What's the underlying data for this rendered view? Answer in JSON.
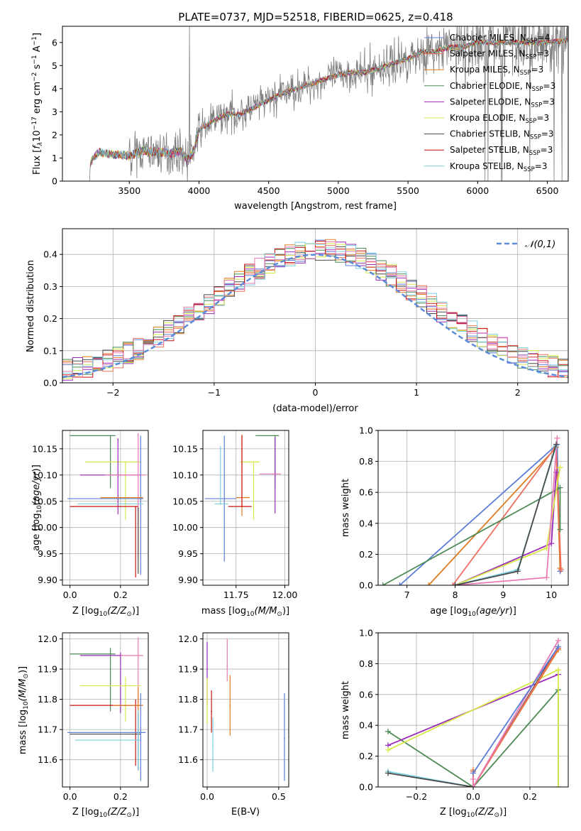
{
  "figure_title": "PLATE=0737, MJD=52518, FIBERID=0625, z=0.418",
  "palette": {
    "Chabrier MILES": "#5b7fd6",
    "Salpeter MILES": "#ee7060",
    "Kroupa MILES": "#e07b20",
    "Chabrier ELODIE": "#4d8a55",
    "Salpeter ELODIE": "#9b2ab8",
    "Kroupa ELODIE": "#d8e84a",
    "Chabrier STELIB": "#4a4a4a",
    "Salpeter STELIB": "#c81414",
    "Kroupa STELIB": "#7ad0e0",
    "pink": "#e87ab4",
    "data": "#7f7f7f",
    "normal": "#5b8bd9"
  },
  "chart_data": [
    {
      "id": "spectrum",
      "type": "line",
      "xlabel": "wavelength [Angstrom, rest frame]",
      "ylabel_parts": [
        "Flux [",
        "f",
        "λ",
        "10",
        "−17",
        " erg cm",
        "−2",
        " s",
        "−1",
        " A",
        "−1",
        "]"
      ],
      "xlim": [
        3020,
        6650
      ],
      "ylim": [
        0,
        6.7
      ],
      "xticks": [
        3500,
        4000,
        4500,
        5000,
        5500,
        6000,
        6500
      ],
      "yticks": [
        0,
        1,
        2,
        3,
        4,
        5,
        6
      ],
      "legend_position": "top-right",
      "legend": [
        {
          "model": "Chabrier MILES",
          "name": "Chabrier MILES, N",
          "sub": "SSP",
          "n": "=4"
        },
        {
          "model": "Salpeter MILES",
          "name": "Salpeter MILES, N",
          "sub": "SSP",
          "n": "=3"
        },
        {
          "model": "Kroupa MILES",
          "name": "Kroupa MILES, N",
          "sub": "SSP",
          "n": "=3"
        },
        {
          "model": "Chabrier ELODIE",
          "name": "Chabrier ELODIE, N",
          "sub": "SSP",
          "n": "=3"
        },
        {
          "model": "Salpeter ELODIE",
          "name": "Salpeter ELODIE, N",
          "sub": "SSP",
          "n": "=3"
        },
        {
          "model": "Kroupa ELODIE",
          "name": "Kroupa ELODIE, N",
          "sub": "SSP",
          "n": "=3"
        },
        {
          "model": "Chabrier STELIB",
          "name": "Chabrier STELIB, N",
          "sub": "SSP",
          "n": "=3"
        },
        {
          "model": "Salpeter STELIB",
          "name": "Salpeter STELIB, N",
          "sub": "SSP",
          "n": "=3"
        },
        {
          "model": "Kroupa STELIB",
          "name": "Kroupa STELIB, N",
          "sub": "SSP",
          "n": "=3"
        }
      ],
      "continuum": [
        [
          3215,
          0
        ],
        [
          3220,
          0.8
        ],
        [
          3280,
          1.25
        ],
        [
          3400,
          1.15
        ],
        [
          3500,
          1.1
        ],
        [
          3600,
          1.3
        ],
        [
          3700,
          1.25
        ],
        [
          3800,
          1.2
        ],
        [
          3870,
          1.3
        ],
        [
          3920,
          0.9
        ],
        [
          3960,
          1.3
        ],
        [
          4000,
          2.2
        ],
        [
          4100,
          2.6
        ],
        [
          4200,
          2.9
        ],
        [
          4300,
          2.9
        ],
        [
          4400,
          3.2
        ],
        [
          4500,
          3.5
        ],
        [
          4600,
          3.8
        ],
        [
          4700,
          4.0
        ],
        [
          4800,
          4.2
        ],
        [
          4900,
          4.4
        ],
        [
          5000,
          4.6
        ],
        [
          5100,
          4.7
        ],
        [
          5200,
          4.7
        ],
        [
          5300,
          4.9
        ],
        [
          5400,
          5.1
        ],
        [
          5500,
          5.3
        ],
        [
          5600,
          5.6
        ],
        [
          5700,
          5.6
        ],
        [
          5800,
          5.8
        ],
        [
          5900,
          5.8
        ],
        [
          6000,
          6.0
        ],
        [
          6100,
          6.0
        ],
        [
          6200,
          6.0
        ],
        [
          6300,
          6.0
        ],
        [
          6400,
          6.0
        ],
        [
          6500,
          6.0
        ],
        [
          6650,
          6.1
        ]
      ]
    },
    {
      "id": "residuals",
      "type": "histogram",
      "xlabel": "(data-model)/error",
      "ylabel": "Normed distribution",
      "xlim": [
        -2.5,
        2.5
      ],
      "ylim": [
        0,
        0.48
      ],
      "xticks": [
        -2,
        -1,
        0,
        1,
        2
      ],
      "yticks": [
        0.0,
        0.1,
        0.2,
        0.3,
        0.4
      ],
      "grid": true,
      "bin_width": 0.1,
      "legend_position": "top-right",
      "legend_label": "𝒩(0,1)",
      "normal_curve": {
        "mu": 0,
        "sigma": 1
      }
    },
    {
      "id": "age_vs_Z",
      "type": "errorbar",
      "xlabel": "Z [log10(Z/Z⊙)]",
      "ylabel": "age  [log10(age/yr)]",
      "xlim": [
        -0.03,
        0.31
      ],
      "ylim": [
        9.89,
        10.185
      ],
      "xticks": [
        0.0,
        0.2
      ],
      "yticks": [
        9.9,
        9.95,
        10.0,
        10.05,
        10.1,
        10.15
      ],
      "grid": true,
      "points": [
        {
          "model": "Chabrier ELODIE",
          "x": 0.16,
          "y": 10.175,
          "xerr": [
            0.16,
            0.02
          ],
          "yerr": [
            0.1,
            0.0
          ]
        },
        {
          "model": "Kroupa ELODIE",
          "x": 0.22,
          "y": 10.125,
          "xerr": [
            0.16,
            0.06
          ],
          "yerr": [
            0.11,
            0.0
          ]
        },
        {
          "model": "Salpeter ELODIE",
          "x": 0.19,
          "y": 10.1,
          "xerr": [
            0.15,
            0.09
          ],
          "yerr": [
            0.075,
            0.07
          ]
        },
        {
          "model": "pink",
          "x": 0.27,
          "y": 10.1,
          "xerr": [
            0.13,
            0.03
          ],
          "yerr": [
            0.16,
            0.08
          ]
        },
        {
          "model": "Chabrier MILES",
          "x": 0.28,
          "y": 10.055,
          "xerr": [
            0.29,
            0.01
          ],
          "yerr": [
            0.145,
            0.12
          ]
        },
        {
          "model": "Kroupa MILES",
          "x": 0.27,
          "y": 10.057,
          "xerr": [
            0.15,
            0.02
          ],
          "yerr": [
            0.0,
            0.0
          ]
        },
        {
          "model": "Kroupa STELIB",
          "x": 0.28,
          "y": 10.045,
          "xerr": [
            0.25,
            0.01
          ],
          "yerr": [
            0.0,
            0.0
          ]
        },
        {
          "model": "Salpeter STELIB",
          "x": 0.26,
          "y": 10.04,
          "xerr": [
            0.26,
            0.01
          ],
          "yerr": [
            0.135,
            0.0
          ]
        },
        {
          "model": "Chabrier STELIB",
          "x": 0.27,
          "y": 10.037,
          "xerr": [
            0.0,
            0.0
          ],
          "yerr": [
            0.125,
            0.0
          ]
        }
      ]
    },
    {
      "id": "age_vs_mass",
      "type": "errorbar",
      "xlabel": "mass [log10(M/M⊙)]",
      "ylabel": "",
      "xlim": [
        11.58,
        12.02
      ],
      "ylim": [
        9.89,
        10.185
      ],
      "xticks": [
        11.75,
        12.0
      ],
      "xtick_labels": [
        "11.75",
        "12.00"
      ],
      "yticks": [
        9.9,
        9.95,
        10.0,
        10.05,
        10.1,
        10.15
      ],
      "grid": true,
      "points": [
        {
          "model": "Chabrier ELODIE",
          "x": 11.95,
          "y": 10.175,
          "xerr": [
            0.1,
            0.02
          ],
          "yerr": [
            0.1,
            0.0
          ]
        },
        {
          "model": "Kroupa ELODIE",
          "x": 11.84,
          "y": 10.125,
          "xerr": [
            0.07,
            0.03
          ],
          "yerr": [
            0.11,
            0.0
          ]
        },
        {
          "model": "Salpeter ELODIE",
          "x": 11.95,
          "y": 10.102,
          "xerr": [
            0.0,
            0.0
          ],
          "yerr": [
            0.075,
            0.07
          ]
        },
        {
          "model": "pink",
          "x": 11.94,
          "y": 10.102,
          "xerr": [
            0.07,
            0.04
          ],
          "yerr": [
            0.0,
            0.0
          ]
        },
        {
          "model": "Chabrier MILES",
          "x": 11.69,
          "y": 10.055,
          "xerr": [
            0.1,
            0.06
          ],
          "yerr": [
            0.12,
            0.12
          ]
        },
        {
          "model": "Kroupa MILES",
          "x": 11.78,
          "y": 10.057,
          "xerr": [
            0.03,
            0.04
          ],
          "yerr": [
            0.035,
            0.12
          ]
        },
        {
          "model": "Kroupa STELIB",
          "x": 11.67,
          "y": 10.045,
          "xerr": [
            0.03,
            0.04
          ],
          "yerr": [
            0.0,
            0.11
          ]
        },
        {
          "model": "Salpeter STELIB",
          "x": 11.78,
          "y": 10.04,
          "xerr": [
            0.07,
            0.05
          ],
          "yerr": [
            0.0,
            0.135
          ]
        }
      ]
    },
    {
      "id": "massweight_vs_age",
      "type": "line",
      "xlabel": "age  [log10(age/yr)]",
      "ylabel": "mass weight",
      "xlim": [
        6.4,
        10.35
      ],
      "ylim": [
        0,
        1.0
      ],
      "xticks": [
        7,
        8,
        9,
        10
      ],
      "yticks": [
        0.0,
        0.2,
        0.4,
        0.6,
        0.8,
        1.0
      ],
      "grid": true,
      "series": [
        {
          "model": "Chabrier MILES",
          "x": [
            6.85,
            10.12,
            10.18
          ],
          "y": [
            0.0,
            0.91,
            0.09
          ]
        },
        {
          "model": "Kroupa MILES",
          "x": [
            7.45,
            10.1,
            10.18
          ],
          "y": [
            0.0,
            0.89,
            0.11
          ]
        },
        {
          "model": "Salpeter MILES",
          "x": [
            7.95,
            10.1,
            10.2
          ],
          "y": [
            0.0,
            0.9,
            0.1
          ]
        },
        {
          "model": "Chabrier ELODIE",
          "x": [
            6.5,
            10.18,
            10.18
          ],
          "y": [
            0.0,
            0.63,
            0.36
          ]
        },
        {
          "model": "Salpeter ELODIE",
          "x": [
            8.0,
            10.0,
            10.1
          ],
          "y": [
            0.0,
            0.27,
            0.73
          ]
        },
        {
          "model": "Kroupa ELODIE",
          "x": [
            8.0,
            9.9,
            10.18
          ],
          "y": [
            0.0,
            0.24,
            0.76
          ]
        },
        {
          "model": "pink",
          "x": [
            8.0,
            9.9,
            10.12
          ],
          "y": [
            0.0,
            0.05,
            0.95
          ]
        },
        {
          "model": "Kroupa STELIB",
          "x": [
            8.0,
            9.3,
            10.1
          ],
          "y": [
            0.0,
            0.1,
            0.9
          ]
        },
        {
          "model": "Chabrier STELIB",
          "x": [
            8.0,
            9.3,
            10.1
          ],
          "y": [
            0.0,
            0.09,
            0.91
          ]
        }
      ]
    },
    {
      "id": "mass_vs_Z",
      "type": "errorbar",
      "xlabel": "Z [log10(Z/Z⊙)]",
      "ylabel": "mass [log10(M/M⊙)]",
      "xlim": [
        -0.03,
        0.31
      ],
      "ylim": [
        11.51,
        12.02
      ],
      "xticks": [
        0.0,
        0.2
      ],
      "yticks": [
        11.6,
        11.7,
        11.8,
        11.9,
        12.0
      ],
      "grid": true,
      "points": [
        {
          "model": "Chabrier ELODIE",
          "x": 0.16,
          "y": 11.95,
          "xerr": [
            0.16,
            0.02
          ],
          "yerr": [
            0.19,
            0.02
          ]
        },
        {
          "model": "Salpeter ELODIE",
          "x": 0.2,
          "y": 11.945,
          "xerr": [
            0.16,
            0.01
          ],
          "yerr": [
            0.19,
            0.01
          ]
        },
        {
          "model": "pink",
          "x": 0.27,
          "y": 11.945,
          "xerr": [
            0.07,
            0.02
          ],
          "yerr": [
            0.16,
            0.06
          ]
        },
        {
          "model": "Kroupa ELODIE",
          "x": 0.22,
          "y": 11.845,
          "xerr": [
            0.18,
            0.06
          ],
          "yerr": [
            0.12,
            0.03
          ]
        },
        {
          "model": "Salpeter STELIB",
          "x": 0.26,
          "y": 11.78,
          "xerr": [
            0.26,
            0.02
          ],
          "yerr": [
            0.2,
            0.02
          ]
        },
        {
          "model": "Kroupa MILES",
          "x": 0.27,
          "y": 11.78,
          "xerr": [
            0.1,
            0.02
          ],
          "yerr": [
            0.1,
            0.06
          ]
        },
        {
          "model": "Chabrier MILES",
          "x": 0.28,
          "y": 11.69,
          "xerr": [
            0.29,
            0.02
          ],
          "yerr": [
            0.16,
            0.13
          ]
        },
        {
          "model": "Chabrier STELIB",
          "x": 0.27,
          "y": 11.685,
          "xerr": [
            0.27,
            0.01
          ],
          "yerr": [
            0.12,
            0.07
          ]
        },
        {
          "model": "Kroupa STELIB",
          "x": 0.27,
          "y": 11.665,
          "xerr": [
            0.25,
            0.01
          ],
          "yerr": [
            0.1,
            0.1
          ]
        }
      ]
    },
    {
      "id": "mass_vs_EBV",
      "type": "errorbar",
      "xlabel": "E(B-V)",
      "ylabel": "",
      "xlim": [
        -0.03,
        0.57
      ],
      "ylim": [
        11.51,
        12.02
      ],
      "xticks": [
        0.0,
        0.5
      ],
      "yticks": [
        11.6,
        11.7,
        11.8,
        11.9,
        12.0
      ],
      "grid": true,
      "points": [
        {
          "model": "Salpeter ELODIE",
          "x": 0.0,
          "y": 11.9,
          "xerr": [
            0,
            0
          ],
          "yerr": [
            0.12,
            0.09
          ]
        },
        {
          "model": "Kroupa ELODIE",
          "x": 0.0,
          "y": 11.79,
          "xerr": [
            0,
            0
          ],
          "yerr": [
            0.07,
            0.08
          ]
        },
        {
          "model": "Salpeter STELIB",
          "x": 0.03,
          "y": 11.76,
          "xerr": [
            0,
            0
          ],
          "yerr": [
            0.07,
            0.07
          ]
        },
        {
          "model": "Kroupa STELIB",
          "x": 0.04,
          "y": 11.65,
          "xerr": [
            0,
            0
          ],
          "yerr": [
            0.09,
            0.09
          ]
        },
        {
          "model": "pink",
          "x": 0.14,
          "y": 11.91,
          "xerr": [
            0,
            0
          ],
          "yerr": [
            0.05,
            0.09
          ]
        },
        {
          "model": "Kroupa MILES",
          "x": 0.16,
          "y": 11.78,
          "xerr": [
            0,
            0
          ],
          "yerr": [
            0.1,
            0.1
          ]
        },
        {
          "model": "Chabrier MILES",
          "x": 0.54,
          "y": 11.67,
          "xerr": [
            0,
            0
          ],
          "yerr": [
            0.14,
            0.15
          ]
        }
      ]
    },
    {
      "id": "massweight_vs_Z",
      "type": "line",
      "xlabel": "Z [log10(Z/Z⊙)]",
      "ylabel": "mass weight",
      "xlim": [
        -0.335,
        0.335
      ],
      "ylim": [
        0,
        1.0
      ],
      "xticks": [
        -0.2,
        0.0,
        0.2
      ],
      "xtick_labels": [
        "−0.2",
        "0.0",
        "0.2"
      ],
      "yticks": [
        0.0,
        0.2,
        0.4,
        0.6,
        0.8,
        1.0
      ],
      "grid": true,
      "series": [
        {
          "model": "Chabrier ELODIE",
          "x": [
            -0.3,
            0.0,
            0.3,
            0.3
          ],
          "y": [
            0.36,
            0.0,
            0.63,
            0.0
          ]
        },
        {
          "model": "Salpeter ELODIE",
          "x": [
            -0.3,
            0.3
          ],
          "y": [
            0.27,
            0.73
          ]
        },
        {
          "model": "Kroupa ELODIE",
          "x": [
            -0.3,
            0.3,
            0.3
          ],
          "y": [
            0.24,
            0.76,
            0.0
          ]
        },
        {
          "model": "Kroupa STELIB",
          "x": [
            -0.3,
            0.0,
            0.3
          ],
          "y": [
            0.1,
            0.0,
            0.9
          ]
        },
        {
          "model": "Chabrier STELIB",
          "x": [
            -0.3,
            0.0,
            0.3
          ],
          "y": [
            0.09,
            0.0,
            0.91
          ]
        },
        {
          "model": "Kroupa MILES",
          "x": [
            0.0,
            0.0,
            0.3
          ],
          "y": [
            0.11,
            0.0,
            0.89
          ]
        },
        {
          "model": "Salpeter MILES",
          "x": [
            0.0,
            0.0,
            0.3
          ],
          "y": [
            0.1,
            0.0,
            0.9
          ]
        },
        {
          "model": "pink",
          "x": [
            0.0,
            0.0,
            0.3
          ],
          "y": [
            0.05,
            0.0,
            0.95
          ]
        },
        {
          "model": "Chabrier MILES",
          "x": [
            0.0,
            0.3
          ],
          "y": [
            0.09,
            0.91
          ]
        }
      ]
    }
  ]
}
